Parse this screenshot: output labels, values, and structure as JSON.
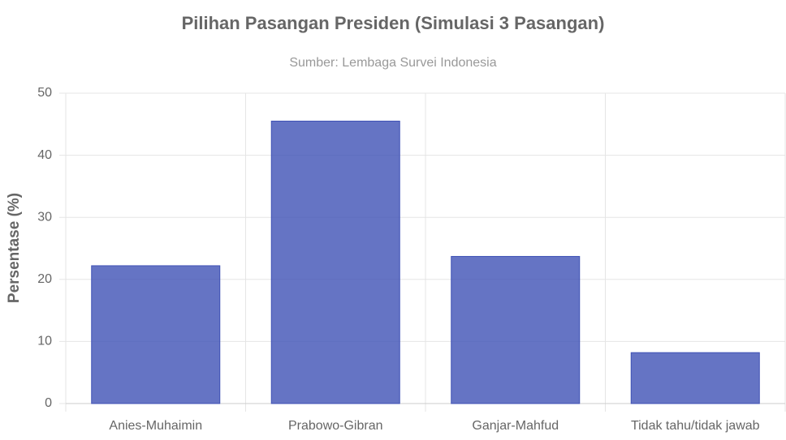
{
  "chart_data": {
    "type": "bar",
    "title": "Pilihan Pasangan Presiden (Simulasi 3 Pasangan)",
    "subtitle": "Sumber: Lembaga Survei Indonesia",
    "y_label": "Persentase (%)",
    "categories": [
      "Anies-Muhaimin",
      "Prabowo-Gibran",
      "Ganjar-Mahfud",
      "Tidak tahu/tidak jawab"
    ],
    "values": [
      22.2,
      45.5,
      23.7,
      8.2
    ],
    "color": "rgba(63,81,181,0.8)",
    "border_color": "#3f51b5",
    "ylim": [
      0,
      50
    ],
    "yticks": [
      0,
      10,
      20,
      30,
      40,
      50
    ],
    "grid": true
  }
}
